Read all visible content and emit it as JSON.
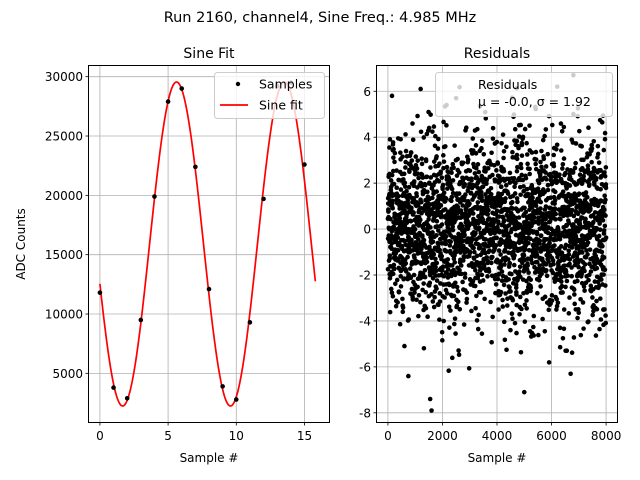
{
  "figure": {
    "title": "Run 2160, channel4, Sine Freq.: 4.985 MHz"
  },
  "chart_data": [
    {
      "type": "line",
      "title": "Sine Fit",
      "xlabel": "Sample #",
      "ylabel": "ADC Counts",
      "xlim": [
        -0.8,
        16.8
      ],
      "ylim": [
        900,
        30900
      ],
      "xticks": [
        0,
        5,
        10,
        15
      ],
      "yticks": [
        5000,
        10000,
        15000,
        20000,
        25000,
        30000
      ],
      "grid": true,
      "legend_position": "top-right",
      "series": [
        {
          "name": "Samples",
          "style": "markers",
          "color": "#000000",
          "x": [
            0,
            1,
            2,
            3,
            4,
            5,
            6,
            7,
            8,
            9,
            10,
            11,
            12,
            13,
            14,
            15
          ],
          "y": [
            11800,
            3800,
            2900,
            9500,
            19900,
            27900,
            29000,
            22400,
            12100,
            3900,
            2800,
            9300,
            19700,
            29200,
            29500,
            22600
          ]
        },
        {
          "name": "Sine fit",
          "style": "line",
          "color": "#ff0000",
          "function": {
            "offset": 15900,
            "amplitude": 13650,
            "period": 7.91,
            "phase_sample": 5.62,
            "x_start": 0,
            "x_end": 15.8
          }
        }
      ]
    },
    {
      "type": "scatter",
      "title": "Residuals",
      "xlabel": "Sample #",
      "xlim": [
        -400,
        8400
      ],
      "ylim": [
        -8.4,
        7.1
      ],
      "xticks": [
        0,
        2000,
        4000,
        6000,
        8000
      ],
      "yticks": [
        -8,
        -6,
        -4,
        -2,
        0,
        2,
        4,
        6
      ],
      "grid": true,
      "legend_position": "top-right",
      "series": [
        {
          "name": "Residuals",
          "color": "#000000",
          "n_points": 8000,
          "x_range": [
            0,
            8000
          ],
          "mean": -0.0,
          "std": 1.92,
          "outliers": [
            [
              1600,
              -7.9
            ],
            [
              1550,
              -7.4
            ],
            [
              5000,
              -7.1
            ],
            [
              750,
              -6.4
            ],
            [
              6700,
              -6.3
            ],
            [
              6800,
              6.7
            ],
            [
              1200,
              6.1
            ],
            [
              150,
              5.8
            ],
            [
              2500,
              5.7
            ],
            [
              2150,
              5.4
            ]
          ]
        }
      ],
      "legend_stats": "μ = -0.0, σ = 1.92"
    }
  ]
}
